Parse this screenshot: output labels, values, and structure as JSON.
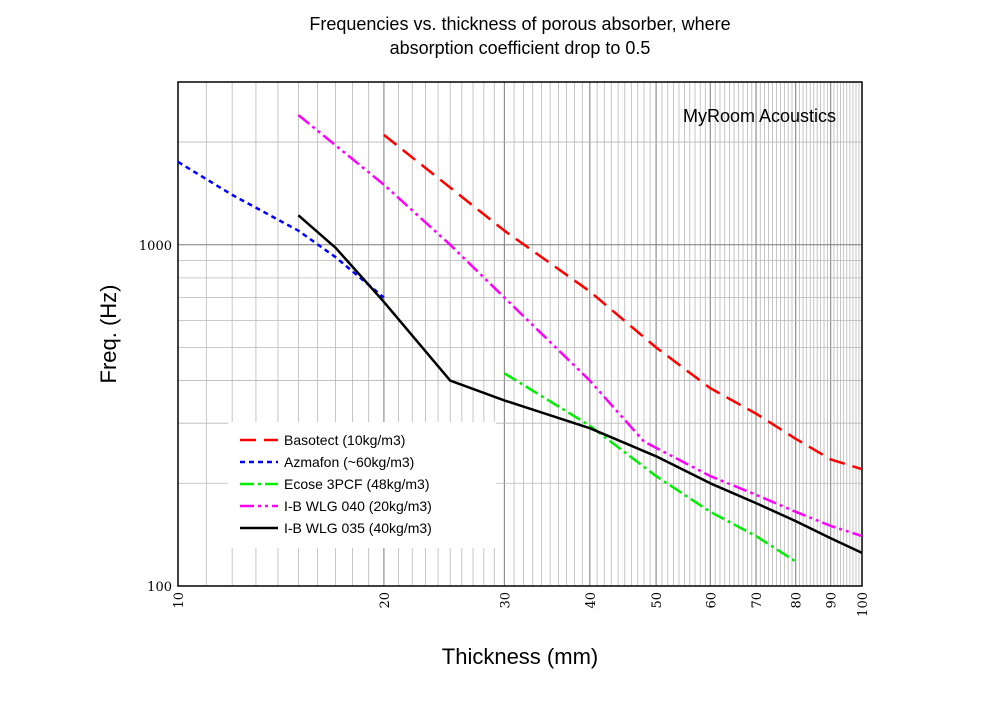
{
  "chart_data": {
    "type": "line",
    "title_lines": [
      "Frequencies vs. thickness of porous absorber, where",
      "absorption coefficient drop to 0.5"
    ],
    "xlabel": "Thickness (mm)",
    "ylabel": "Freq. (Hz)",
    "xscale": "log",
    "yscale": "log",
    "xlim": [
      10,
      100
    ],
    "ylim": [
      100,
      3000
    ],
    "grid": true,
    "xticks": [
      10,
      20,
      30,
      40,
      50,
      60,
      70,
      80,
      90,
      100
    ],
    "xtick_labels": [
      "10",
      "20",
      "30",
      "40",
      "50",
      "60",
      "70",
      "80",
      "90",
      "100"
    ],
    "yticks": [
      100,
      1000
    ],
    "ytick_labels": [
      "100",
      "1000"
    ],
    "annotation": "MyRoom Acoustics",
    "legend_position": "bottom-left",
    "series": [
      {
        "name": "Basotect (10kg/m3)",
        "color": "#ff0000",
        "dash": "16,8",
        "width": 2.5,
        "x": [
          20,
          30,
          40,
          50,
          60,
          70,
          80,
          90,
          100
        ],
        "y": [
          2100,
          1100,
          730,
          500,
          380,
          320,
          270,
          235,
          220
        ]
      },
      {
        "name": "Azmafon (~60kg/m3)",
        "color": "#0000ff",
        "dash": "5,4",
        "width": 2.5,
        "x": [
          10,
          12,
          15,
          17,
          20
        ],
        "y": [
          1750,
          1400,
          1100,
          920,
          700
        ]
      },
      {
        "name": "Ecose 3PCF (48kg/m3)",
        "color": "#00ee00",
        "dash": "14,4,3,4",
        "width": 2.5,
        "x": [
          30,
          40,
          50,
          60,
          70,
          80
        ],
        "y": [
          420,
          295,
          210,
          165,
          140,
          118
        ]
      },
      {
        "name": "I-B WLG 040 (20kg/m3)",
        "color": "#ff00ff",
        "dash": "14,4,3,4,3,4",
        "width": 2.5,
        "x": [
          15,
          20,
          25,
          30,
          40,
          48,
          55,
          60,
          70,
          80,
          90,
          100
        ],
        "y": [
          2400,
          1500,
          1000,
          700,
          400,
          265,
          230,
          210,
          185,
          165,
          150,
          140
        ]
      },
      {
        "name": "I-B WLG 035 (40kg/m3)",
        "color": "#000000",
        "dash": "",
        "width": 2.5,
        "x": [
          15,
          17,
          20,
          25,
          30,
          40,
          50,
          60,
          70,
          80,
          90,
          100
        ],
        "y": [
          1220,
          980,
          680,
          400,
          350,
          290,
          240,
          200,
          175,
          155,
          138,
          125
        ]
      }
    ]
  }
}
